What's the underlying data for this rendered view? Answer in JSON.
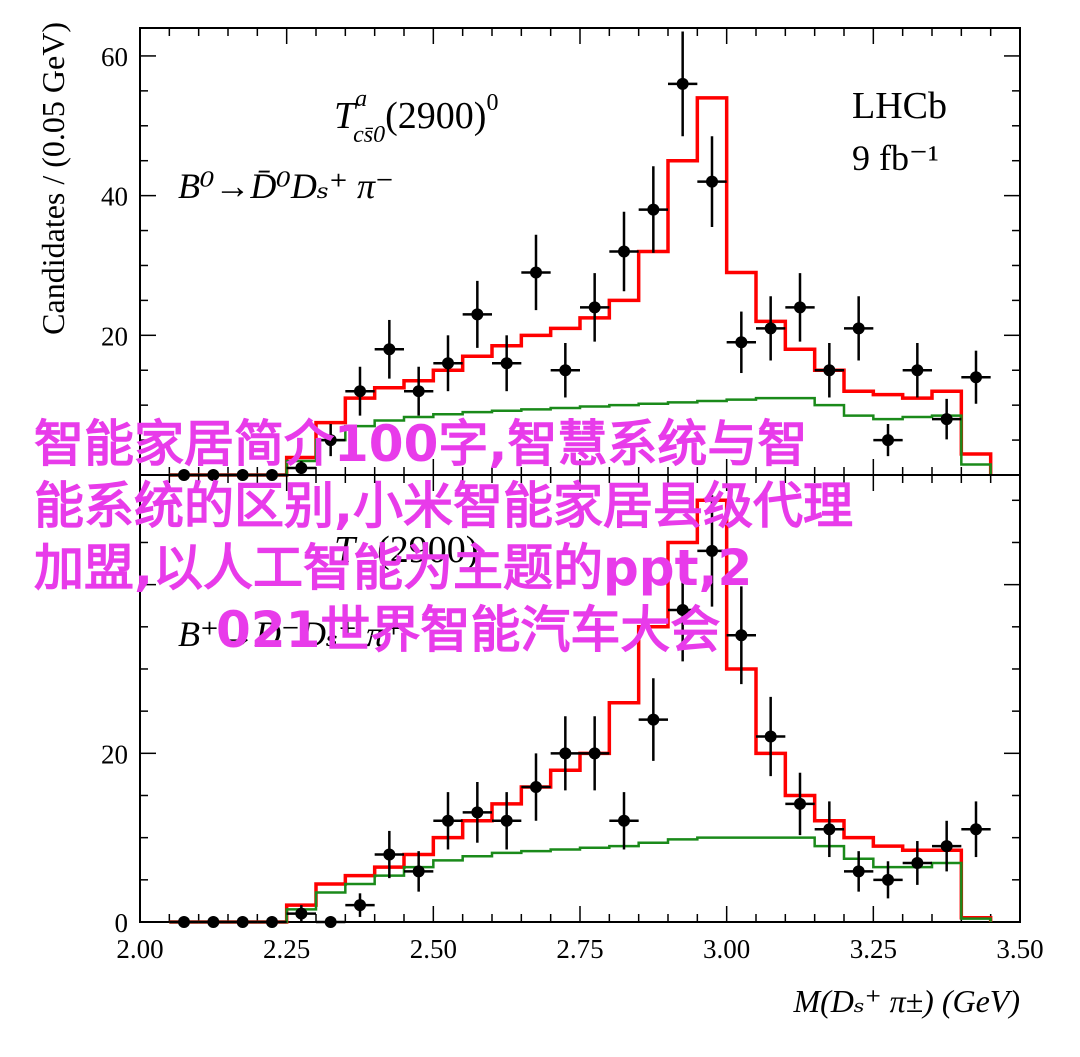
{
  "chart_data": [
    {
      "type": "step-histogram-with-points",
      "xlabel": "",
      "ylabel": "Candidates / (0.05 GeV)",
      "xlim": [
        2.0,
        3.5
      ],
      "ylim": [
        0,
        64
      ],
      "yticks": [
        "20",
        "40",
        "60"
      ],
      "annotations": {
        "lhcb": "LHCb",
        "lumi": "9 fb⁻¹",
        "resonance_main": "T",
        "resonance_sup": "a",
        "resonance_sub": "cs̄0",
        "resonance_rest": "(2900)",
        "resonance_sup0": "0",
        "decay": "B⁰→D̄⁰Dₛ⁺ π⁻"
      },
      "points": {
        "x": [
          2.075,
          2.125,
          2.175,
          2.225,
          2.275,
          2.325,
          2.375,
          2.425,
          2.475,
          2.525,
          2.575,
          2.625,
          2.675,
          2.725,
          2.775,
          2.825,
          2.875,
          2.925,
          2.975,
          3.025,
          3.075,
          3.125,
          3.175,
          3.225,
          3.275,
          3.325,
          3.375,
          3.425
        ],
        "y": [
          0,
          0,
          0,
          0,
          1,
          5,
          12,
          18,
          12,
          16,
          23,
          16,
          29,
          15,
          24,
          32,
          38,
          56,
          42,
          19,
          21,
          24,
          15,
          21,
          5,
          15,
          8,
          14
        ],
        "err": [
          0,
          0,
          0,
          0,
          1,
          2.3,
          3.5,
          4.2,
          3.5,
          4,
          4.8,
          4,
          5.4,
          3.9,
          4.9,
          5.7,
          6.2,
          7.5,
          6.5,
          4.4,
          4.6,
          4.9,
          3.9,
          4.6,
          2.3,
          3.9,
          2.9,
          3.8
        ]
      },
      "series": [
        {
          "name": "",
          "color": "#ff0000",
          "edges": [
            2.05,
            2.1,
            2.15,
            2.2,
            2.25,
            2.3,
            2.35,
            2.4,
            2.45,
            2.5,
            2.55,
            2.6,
            2.65,
            2.7,
            2.75,
            2.8,
            2.85,
            2.9,
            2.95,
            3.0,
            3.05,
            3.1,
            3.15,
            3.2,
            3.25,
            3.3,
            3.35,
            3.4,
            3.45
          ],
          "values": [
            0,
            0,
            0,
            0,
            2.5,
            7.5,
            11,
            12.5,
            13.5,
            15,
            17,
            18.5,
            20,
            21,
            22.5,
            25,
            32,
            45,
            54,
            29,
            22,
            18,
            15,
            12,
            11.5,
            11,
            12,
            3,
            0
          ]
        },
        {
          "name": "",
          "color": "#1a8a1a",
          "edges": [
            2.05,
            2.1,
            2.15,
            2.2,
            2.25,
            2.3,
            2.35,
            2.4,
            2.45,
            2.5,
            2.55,
            2.6,
            2.65,
            2.7,
            2.75,
            2.8,
            2.85,
            2.9,
            2.95,
            3.0,
            3.05,
            3.1,
            3.15,
            3.2,
            3.25,
            3.3,
            3.35,
            3.4,
            3.45
          ],
          "values": [
            0,
            0,
            0,
            0,
            2,
            5,
            7,
            7.8,
            8.3,
            8.7,
            9,
            9.2,
            9.4,
            9.6,
            9.8,
            10,
            10.2,
            10.4,
            10.6,
            10.8,
            11,
            11,
            10,
            8.5,
            8,
            8.3,
            8.5,
            1.5,
            0
          ]
        }
      ]
    },
    {
      "type": "step-histogram-with-points",
      "xlabel": "M(Dₛ⁺ π±) (GeV)",
      "ylabel": "",
      "xlim": [
        2.0,
        3.5
      ],
      "ylim": [
        0,
        53
      ],
      "xticks": [
        "2.00",
        "2.25",
        "2.50",
        "2.75",
        "3.00",
        "3.25",
        "3.50"
      ],
      "yticks": [
        "0",
        "20"
      ],
      "annotations": {
        "resonance_main": "T",
        "resonance_rest": "(2900)",
        "decay": "B⁺→D⁻Dₛ⁺ π⁺"
      },
      "points": {
        "x": [
          2.075,
          2.125,
          2.175,
          2.225,
          2.275,
          2.325,
          2.375,
          2.425,
          2.475,
          2.525,
          2.575,
          2.625,
          2.675,
          2.725,
          2.775,
          2.825,
          2.875,
          2.925,
          2.975,
          3.025,
          3.075,
          3.125,
          3.175,
          3.225,
          3.275,
          3.325,
          3.375,
          3.425
        ],
        "y": [
          0,
          0,
          0,
          0,
          1,
          0,
          2,
          8,
          6,
          12,
          13,
          12,
          16,
          20,
          20,
          12,
          24,
          37,
          44,
          34,
          22,
          14,
          11,
          6,
          5,
          7,
          9,
          11
        ],
        "err": [
          0,
          0,
          0,
          0,
          1,
          0,
          1.4,
          2.8,
          2.4,
          3.4,
          3.6,
          3.4,
          4,
          4.4,
          4.4,
          3.4,
          4.9,
          6.1,
          6.6,
          5.8,
          4.7,
          3.7,
          3.3,
          2.4,
          2.2,
          2.6,
          3,
          3.3
        ]
      },
      "series": [
        {
          "name": "",
          "color": "#ff0000",
          "edges": [
            2.05,
            2.1,
            2.15,
            2.2,
            2.25,
            2.3,
            2.35,
            2.4,
            2.45,
            2.5,
            2.55,
            2.6,
            2.65,
            2.7,
            2.75,
            2.8,
            2.85,
            2.9,
            2.95,
            3.0,
            3.05,
            3.1,
            3.15,
            3.2,
            3.25,
            3.3,
            3.35,
            3.4,
            3.45
          ],
          "values": [
            0,
            0,
            0,
            0,
            2,
            4.5,
            5.5,
            6.5,
            8,
            10,
            12,
            14,
            16,
            18,
            20,
            26,
            35,
            45,
            50,
            30,
            20,
            15,
            12,
            10,
            9,
            8.5,
            8.5,
            0.5,
            0
          ]
        },
        {
          "name": "",
          "color": "#1a8a1a",
          "edges": [
            2.05,
            2.1,
            2.15,
            2.2,
            2.25,
            2.3,
            2.35,
            2.4,
            2.45,
            2.5,
            2.55,
            2.6,
            2.65,
            2.7,
            2.75,
            2.8,
            2.85,
            2.9,
            2.95,
            3.0,
            3.05,
            3.1,
            3.15,
            3.2,
            3.25,
            3.3,
            3.35,
            3.4,
            3.45
          ],
          "values": [
            0,
            0,
            0,
            0,
            1.5,
            3.5,
            4.5,
            5.5,
            6.5,
            7.3,
            7.8,
            8.2,
            8.4,
            8.6,
            8.8,
            9,
            9.4,
            9.8,
            10,
            10,
            10,
            10,
            9,
            7.5,
            6.5,
            6.5,
            7,
            0.4,
            0
          ]
        }
      ]
    }
  ],
  "overlay_text": [
    "智能家居简介100字,智慧系统与智",
    "能系统的区别,小米智能家居县级代理",
    "加盟,以人工智能为主题的ppt,2",
    "021世界智能汽车大会"
  ]
}
